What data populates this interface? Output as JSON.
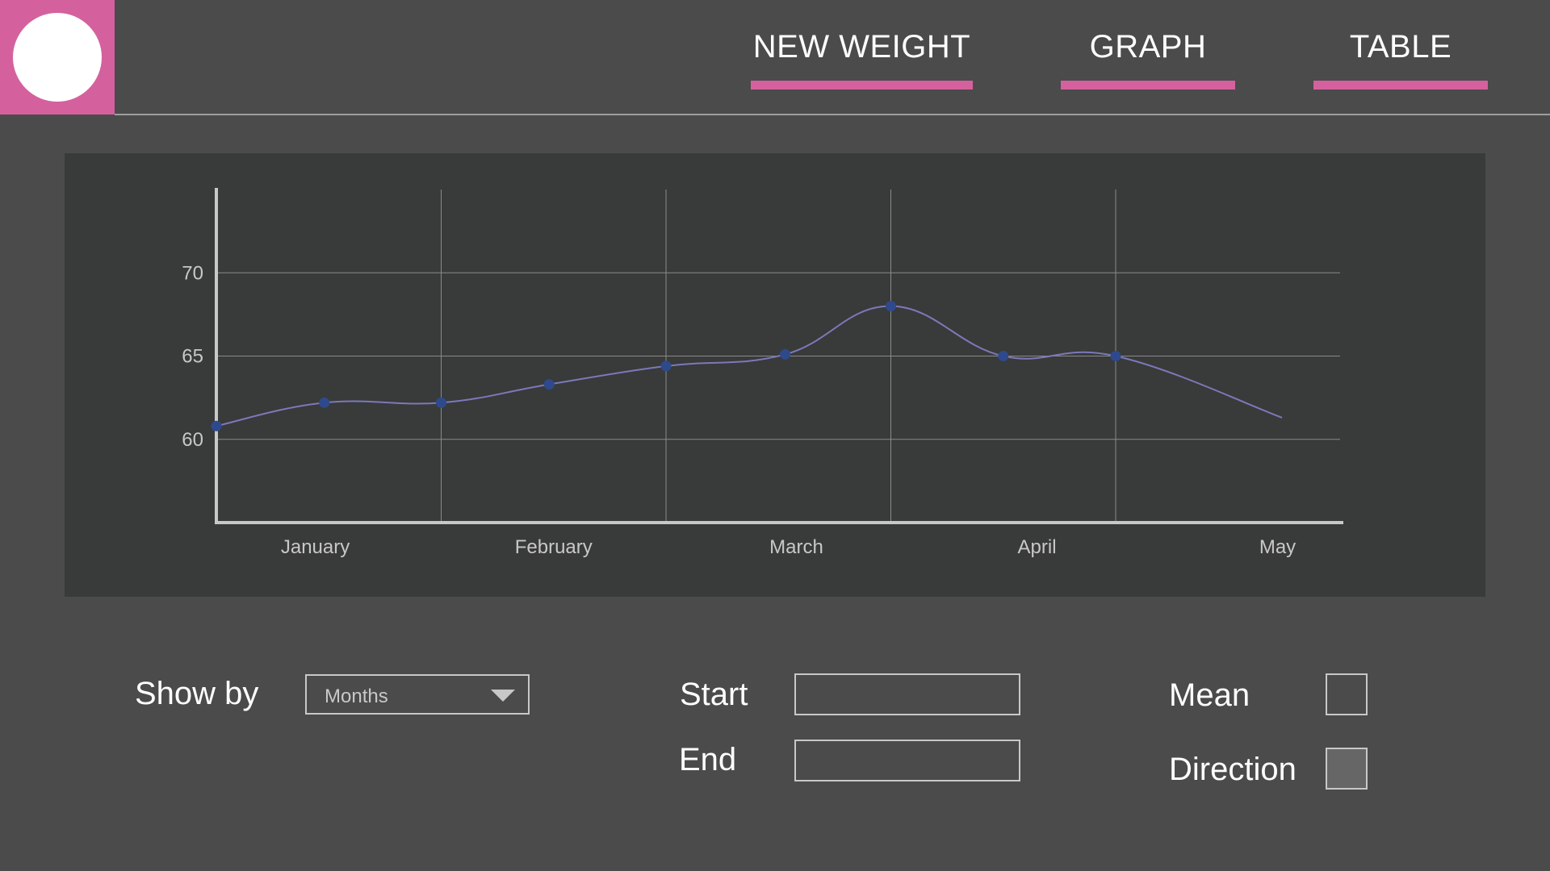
{
  "colors": {
    "accent": "#d4619e",
    "background": "#4b4b4b",
    "panel": "#393a3a",
    "line": "#7b79b9",
    "point": "#2e4a8c"
  },
  "header": {
    "logo_icon": "circle-logo",
    "tabs": [
      {
        "label": "NEW WEIGHT"
      },
      {
        "label": "GRAPH"
      },
      {
        "label": "TABLE"
      }
    ]
  },
  "chart_data": {
    "type": "line",
    "title": "",
    "xlabel": "",
    "ylabel": "",
    "categories": [
      "January",
      "February",
      "March",
      "April",
      "May"
    ],
    "yticks": [
      60,
      65,
      70
    ],
    "ylim": [
      55,
      75
    ],
    "grid": true,
    "legend": "none",
    "series": [
      {
        "points": [
          {
            "x": 0.0,
            "y": 60.8
          },
          {
            "x": 0.48,
            "y": 62.2
          },
          {
            "x": 1.0,
            "y": 62.2
          },
          {
            "x": 1.48,
            "y": 63.3
          },
          {
            "x": 2.0,
            "y": 64.4
          },
          {
            "x": 2.53,
            "y": 65.1
          },
          {
            "x": 3.0,
            "y": 68.0
          },
          {
            "x": 3.5,
            "y": 65.0
          },
          {
            "x": 4.0,
            "y": 65.0
          }
        ],
        "trail_end": {
          "x": 4.74,
          "y": 61.3
        }
      }
    ]
  },
  "controls": {
    "show_by": {
      "label": "Show by",
      "value": "Months",
      "arrow_icon": "dropdown-triangle-icon"
    },
    "start": {
      "label": "Start",
      "value": ""
    },
    "end": {
      "label": "End",
      "value": ""
    },
    "mean": {
      "label": "Mean",
      "checked": false
    },
    "direction": {
      "label": "Direction",
      "checked": true
    }
  }
}
